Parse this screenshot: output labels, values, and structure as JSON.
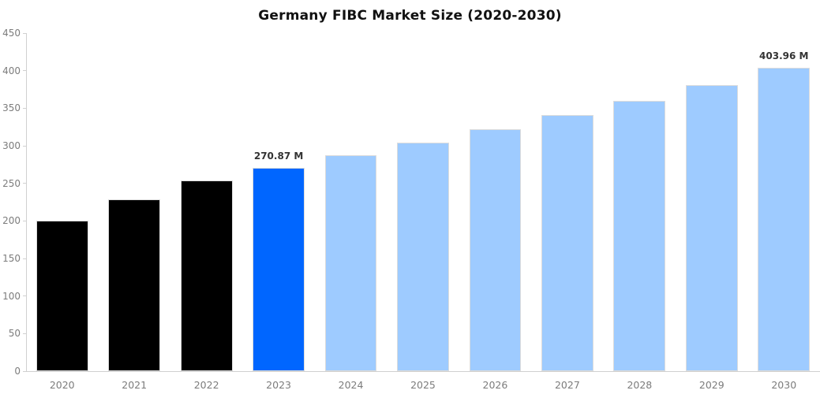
{
  "chart_data": {
    "type": "bar",
    "title": "Germany FIBC Market Size (2020-2030)",
    "categories": [
      "2020",
      "2021",
      "2022",
      "2023",
      "2024",
      "2025",
      "2026",
      "2027",
      "2028",
      "2029",
      "2030"
    ],
    "values": [
      200,
      229,
      254,
      270.87,
      287,
      304,
      322,
      341,
      360,
      381,
      403.96
    ],
    "bar_colors": [
      "#000000",
      "#000000",
      "#000000",
      "#0066ff",
      "#9ecbff",
      "#9ecbff",
      "#9ecbff",
      "#9ecbff",
      "#9ecbff",
      "#9ecbff",
      "#9ecbff"
    ],
    "annotations": [
      {
        "category": "2023",
        "text": "270.87 M"
      },
      {
        "category": "2030",
        "text": "403.96 M"
      }
    ],
    "xlabel": "",
    "ylabel": "",
    "ylim": [
      0,
      450
    ],
    "yticks": [
      0,
      50,
      100,
      150,
      200,
      250,
      300,
      350,
      400,
      450
    ],
    "grid": false,
    "legend": null,
    "colors": {
      "historical_bar": "#000000",
      "highlight_bar": "#0066ff",
      "forecast_bar": "#9ecbff",
      "axis_line": "#d0d0d0",
      "tick_label": "#7c7c7c",
      "annotation_text": "#333333",
      "title_text": "#111111",
      "background": "#ffffff"
    }
  }
}
